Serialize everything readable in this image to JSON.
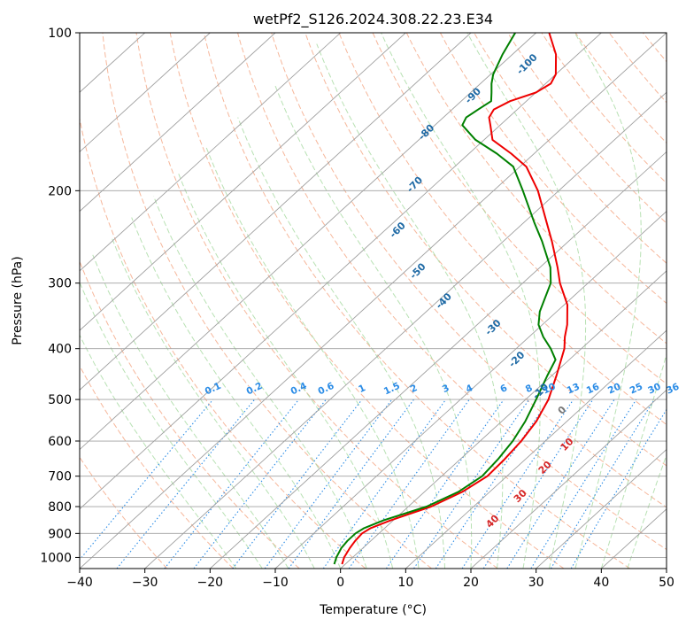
{
  "chart_data": {
    "type": "skew-t",
    "title": "wetPf2_S126.2024.308.22.23.E34",
    "xlabel": "Temperature (°C)",
    "ylabel": "Pressure (hPa)",
    "xlim": [
      -40,
      50
    ],
    "ylim": [
      1050,
      100
    ],
    "y_scale": "log",
    "grid": true,
    "x_ticks": [
      "−40",
      "−30",
      "−20",
      "−10",
      "0",
      "10",
      "20",
      "30",
      "40",
      "50"
    ],
    "y_ticks": [
      "100",
      "200",
      "300",
      "400",
      "500",
      "600",
      "700",
      "800",
      "900",
      "1000"
    ],
    "dry_adiabat_labels": [
      "-100",
      "-90",
      "-80",
      "-70",
      "-60",
      "-50",
      "-40",
      "-30",
      "-20",
      "-10"
    ],
    "moist_adiabat_labels": [
      "0",
      "10",
      "20",
      "30",
      "40"
    ],
    "mixing_ratio_labels": [
      "0.1",
      "0.2",
      "0.4",
      "0.6",
      "1",
      "1.5",
      "2",
      "3",
      "4",
      "6",
      "8",
      "10",
      "13",
      "16",
      "20",
      "25",
      "30",
      "36"
    ],
    "colors": {
      "temperature": "#ee0000",
      "dewpoint": "#008000",
      "dry_adiabat": "#f4a582",
      "moist_adiabat": "#a6d9a0",
      "mixing_ratio": "#2b8ce6",
      "dry_adiabat_label": "#1f6aa5",
      "moist_adiabat_label": "#d62728",
      "mixing_ratio_label": "#2b8ce6",
      "isotherm": "#a0a0a0"
    },
    "series": [
      {
        "key": "temperature",
        "points": [
          [
            1030,
            -0.5
          ],
          [
            1000,
            -1.3
          ],
          [
            960,
            -2.0
          ],
          [
            930,
            -2.4
          ],
          [
            900,
            -2.6
          ],
          [
            880,
            -2.2
          ],
          [
            850,
            -0.4
          ],
          [
            800,
            3.5
          ],
          [
            750,
            5.8
          ],
          [
            700,
            7.0
          ],
          [
            650,
            6.8
          ],
          [
            600,
            6.3
          ],
          [
            550,
            5.3
          ],
          [
            500,
            3.5
          ],
          [
            450,
            0.7
          ],
          [
            400,
            -2.6
          ],
          [
            380,
            -4.5
          ],
          [
            360,
            -6.2
          ],
          [
            330,
            -9.5
          ],
          [
            300,
            -14.3
          ],
          [
            280,
            -17.3
          ],
          [
            250,
            -22.5
          ],
          [
            230,
            -26.5
          ],
          [
            200,
            -33.2
          ],
          [
            180,
            -39.0
          ],
          [
            170,
            -43.5
          ],
          [
            160,
            -48.7
          ],
          [
            150,
            -51.5
          ],
          [
            145,
            -53.0
          ],
          [
            140,
            -53.6
          ],
          [
            135,
            -52.5
          ],
          [
            130,
            -50.0
          ],
          [
            125,
            -49.2
          ],
          [
            120,
            -50.0
          ],
          [
            110,
            -53.3
          ],
          [
            100,
            -58.0
          ]
        ]
      },
      {
        "key": "dewpoint",
        "points": [
          [
            1030,
            -1.7
          ],
          [
            1000,
            -2.5
          ],
          [
            960,
            -3.3
          ],
          [
            930,
            -3.6
          ],
          [
            900,
            -3.6
          ],
          [
            880,
            -3.2
          ],
          [
            850,
            -1.5
          ],
          [
            800,
            2.8
          ],
          [
            750,
            5.2
          ],
          [
            700,
            6.2
          ],
          [
            650,
            5.8
          ],
          [
            600,
            5.0
          ],
          [
            550,
            3.6
          ],
          [
            500,
            1.6
          ],
          [
            450,
            -0.7
          ],
          [
            420,
            -2.1
          ],
          [
            400,
            -4.7
          ],
          [
            380,
            -7.8
          ],
          [
            360,
            -10.6
          ],
          [
            340,
            -12.6
          ],
          [
            300,
            -15.7
          ],
          [
            280,
            -18.4
          ],
          [
            250,
            -24.0
          ],
          [
            230,
            -28.4
          ],
          [
            200,
            -35.5
          ],
          [
            180,
            -41.0
          ],
          [
            170,
            -45.7
          ],
          [
            160,
            -51.3
          ],
          [
            150,
            -55.8
          ],
          [
            145,
            -56.5
          ],
          [
            140,
            -56.0
          ],
          [
            135,
            -55.4
          ],
          [
            130,
            -56.8
          ],
          [
            125,
            -58.3
          ],
          [
            120,
            -59.6
          ],
          [
            110,
            -61.5
          ],
          [
            100,
            -63.2
          ]
        ]
      }
    ]
  }
}
